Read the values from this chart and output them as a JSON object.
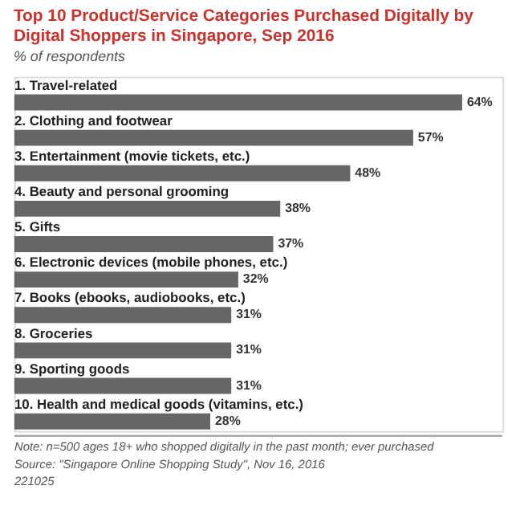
{
  "chart_data": {
    "type": "bar",
    "orientation": "horizontal",
    "title": "Top 10 Product/Service Categories Purchased Digitally by Digital Shoppers in Singapore, Sep 2016",
    "subtitle": "% of respondents",
    "categories": [
      "1. Travel-related",
      "2. Clothing and footwear",
      "3. Entertainment (movie tickets, etc.)",
      "4. Beauty and personal grooming",
      "5. Gifts",
      "6. Electronic devices (mobile phones, etc.)",
      "7. Books (ebooks, audiobooks, etc.)",
      "8. Groceries",
      "9. Sporting goods",
      "10. Health and medical goods (vitamins, etc.)"
    ],
    "values": [
      64,
      57,
      48,
      38,
      37,
      32,
      31,
      31,
      31,
      28
    ],
    "value_labels": [
      "64%",
      "57%",
      "48%",
      "38%",
      "37%",
      "32%",
      "31%",
      "31%",
      "31%",
      "28%"
    ],
    "color": "#666666",
    "annotations": [
      "Note: n=500 ages 18+ who shopped digitally in the past month; ever purchased",
      "Source: \"Singapore Online Shopping Study\", Nov 16, 2016",
      "221025"
    ]
  }
}
